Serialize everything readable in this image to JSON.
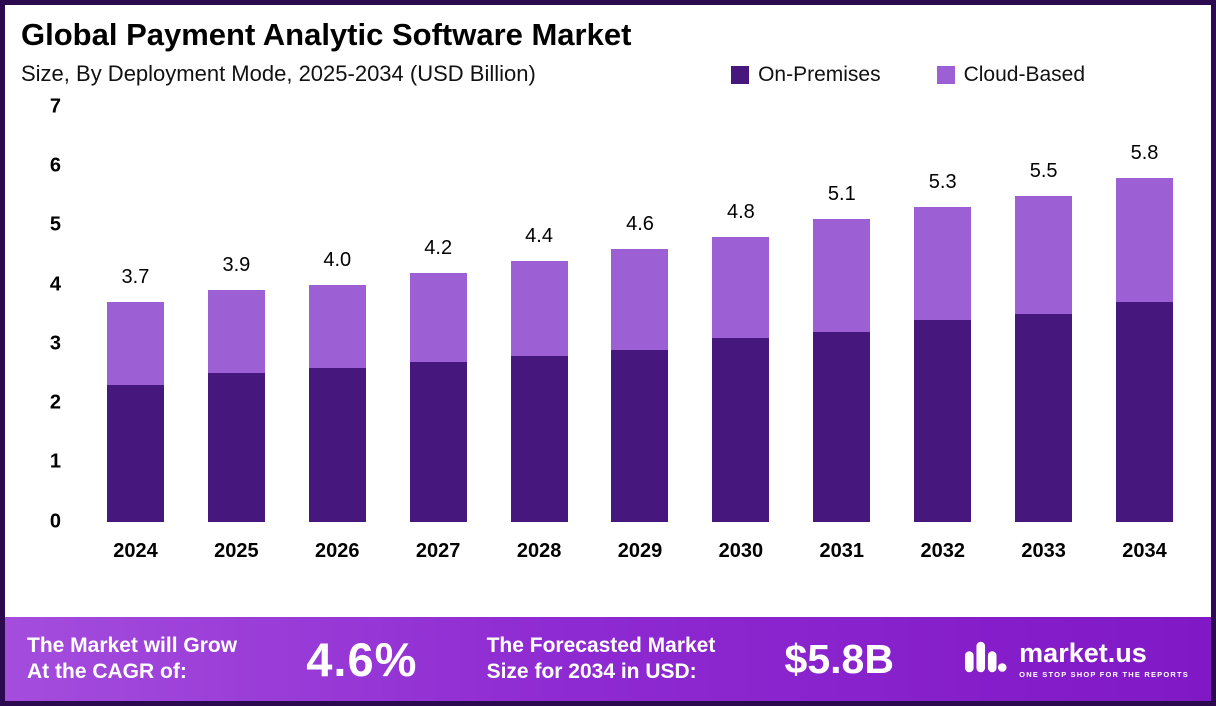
{
  "header": {
    "title": "Global Payment Analytic Software Market",
    "subtitle": "Size, By Deployment Mode, 2025-2034 (USD Billion)"
  },
  "chart_data": {
    "type": "bar",
    "stacked": true,
    "title": "Global Payment Analytic Software Market",
    "subtitle": "Size, By Deployment Mode, 2025-2034 (USD Billion)",
    "categories": [
      "2024",
      "2025",
      "2026",
      "2027",
      "2028",
      "2029",
      "2030",
      "2031",
      "2032",
      "2033",
      "2034"
    ],
    "series": [
      {
        "name": "On-Premises",
        "color": "#46187e",
        "values": [
          2.3,
          2.5,
          2.6,
          2.7,
          2.8,
          2.9,
          3.1,
          3.2,
          3.4,
          3.5,
          3.7
        ]
      },
      {
        "name": "Cloud-Based",
        "color": "#9c5fd4",
        "values": [
          1.4,
          1.4,
          1.4,
          1.5,
          1.6,
          1.7,
          1.7,
          1.9,
          1.9,
          2.0,
          2.1
        ]
      }
    ],
    "totals": [
      "3.7",
      "3.9",
      "4.0",
      "4.2",
      "4.4",
      "4.6",
      "4.8",
      "5.1",
      "5.3",
      "5.5",
      "5.8"
    ],
    "ylim": [
      0,
      7
    ],
    "yticks": [
      0,
      1,
      2,
      3,
      4,
      5,
      6,
      7
    ],
    "grid": false,
    "legend_position": "top-right"
  },
  "footer": {
    "cagr_label": "The Market will Grow\nAt the CAGR of:",
    "cagr_value": "4.6%",
    "forecast_label": "The Forecasted Market\nSize for 2034 in USD:",
    "forecast_value": "$5.8B",
    "brand_name": "market.us",
    "brand_tagline": "ONE STOP SHOP FOR THE REPORTS"
  },
  "colors": {
    "on_premises": "#46187e",
    "cloud_based": "#9c5fd4",
    "page_border": "#2c0a50",
    "footer_gradient_start": "#a44ddd",
    "footer_gradient_end": "#8018c6"
  }
}
